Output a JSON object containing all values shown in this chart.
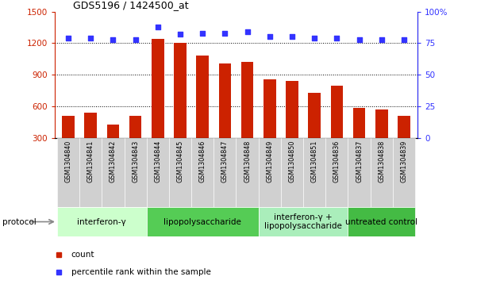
{
  "title": "GDS5196 / 1424500_at",
  "samples": [
    "GSM1304840",
    "GSM1304841",
    "GSM1304842",
    "GSM1304843",
    "GSM1304844",
    "GSM1304845",
    "GSM1304846",
    "GSM1304847",
    "GSM1304848",
    "GSM1304849",
    "GSM1304850",
    "GSM1304851",
    "GSM1304836",
    "GSM1304837",
    "GSM1304838",
    "GSM1304839"
  ],
  "counts": [
    510,
    540,
    430,
    510,
    1240,
    1200,
    1080,
    1010,
    1020,
    860,
    840,
    730,
    800,
    590,
    570,
    510
  ],
  "percentiles": [
    79,
    79,
    78,
    78,
    88,
    82,
    83,
    83,
    84,
    80,
    80,
    79,
    79,
    78,
    78,
    78
  ],
  "protocols": [
    {
      "label": "interferon-γ",
      "start": 0,
      "end": 4,
      "color": "#ccffcc"
    },
    {
      "label": "lipopolysaccharide",
      "start": 4,
      "end": 9,
      "color": "#55cc55"
    },
    {
      "label": "interferon-γ +\nlipopolysaccharide",
      "start": 9,
      "end": 13,
      "color": "#aaeebb"
    },
    {
      "label": "untreated control",
      "start": 13,
      "end": 16,
      "color": "#44bb44"
    }
  ],
  "bar_color": "#cc2200",
  "dot_color": "#3333ff",
  "ylim_left": [
    300,
    1500
  ],
  "ylim_right": [
    0,
    100
  ],
  "yticks_left": [
    300,
    600,
    900,
    1200,
    1500
  ],
  "yticks_right": [
    0,
    25,
    50,
    75,
    100
  ],
  "grid_values": [
    600,
    900,
    1200
  ],
  "background_color": "#ffffff",
  "tick_label_color_left": "#cc2200",
  "tick_label_color_right": "#3333ff",
  "sample_box_color": "#d0d0d0",
  "protocol_label_fontsize": 7.5,
  "bar_width": 0.55
}
